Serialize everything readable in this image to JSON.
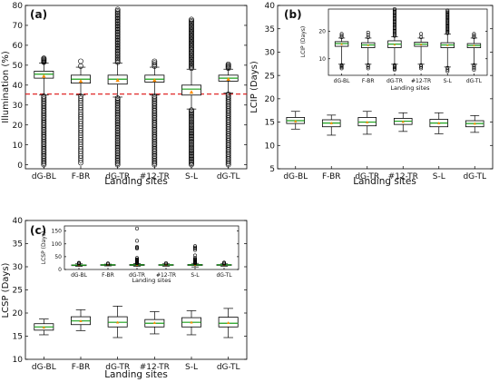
{
  "chart_data": [
    {
      "panel": "(a)",
      "type": "box",
      "ylabel": "Illumination (%)",
      "xlabel": "Landing sites",
      "categories": [
        "dG-BL",
        "F-BR",
        "dG-TR",
        "#12-TR",
        "S-L",
        "dG-TL"
      ],
      "ylim": [
        -2,
        80
      ],
      "yticks": [
        0,
        10,
        20,
        30,
        40,
        50,
        60,
        70,
        80
      ],
      "threshold": 35.5,
      "boxes": [
        {
          "whislo": 35,
          "q1": 43.5,
          "med": 45.5,
          "q3": 47,
          "whishi": 51,
          "mean": 44.5,
          "outlier_groups": [
            [
              0,
              34.5,
              48
            ],
            [
              51.5,
              53.5,
              6
            ]
          ]
        },
        {
          "whislo": 35,
          "q1": 41,
          "med": 43,
          "q3": 45,
          "whishi": 49,
          "mean": 42,
          "outlier_groups": [
            [
              1,
              34.5,
              30
            ],
            [
              49.5,
              52,
              2
            ]
          ]
        },
        {
          "whislo": 34,
          "q1": 40.5,
          "med": 43,
          "q3": 45,
          "whishi": 51,
          "mean": 42.5,
          "outlier_groups": [
            [
              0,
              33.5,
              48
            ],
            [
              51.5,
              78,
              40
            ]
          ]
        },
        {
          "whislo": 35,
          "q1": 41.5,
          "med": 43,
          "q3": 45,
          "whishi": 49,
          "mean": 42.5,
          "outlier_groups": [
            [
              0,
              34.5,
              48
            ],
            [
              49.5,
              52,
              4
            ]
          ]
        },
        {
          "whislo": 28,
          "q1": 35,
          "med": 38,
          "q3": 40,
          "whishi": 48,
          "mean": 36.5,
          "outlier_groups": [
            [
              0,
              27.5,
              42
            ],
            [
              48.5,
              73,
              40
            ]
          ]
        },
        {
          "whislo": 36,
          "q1": 42,
          "med": 43.5,
          "q3": 45,
          "whishi": 48,
          "mean": 43,
          "outlier_groups": [
            [
              0,
              35.5,
              48
            ],
            [
              48.5,
              50.5,
              5
            ]
          ]
        }
      ]
    },
    {
      "panel": "(b)",
      "type": "box",
      "ylabel": "LCIP (Days)",
      "xlabel": "Landing sites",
      "categories": [
        "dG-BL",
        "F-BR",
        "dG-TR",
        "#12-TR",
        "S-L",
        "dG-TL"
      ],
      "ylim": [
        5,
        40
      ],
      "yticks": [
        5,
        10,
        15,
        20,
        25,
        30,
        35,
        40
      ],
      "boxes": [
        {
          "whislo": 13.5,
          "q1": 14.7,
          "med": 15.3,
          "q3": 16,
          "whishi": 17.3,
          "mean": 15.2
        },
        {
          "whislo": 12.2,
          "q1": 14,
          "med": 14.8,
          "q3": 15.5,
          "whishi": 16.5,
          "mean": 14.8
        },
        {
          "whislo": 12.4,
          "q1": 14.2,
          "med": 15,
          "q3": 16,
          "whishi": 17.3,
          "mean": 15
        },
        {
          "whislo": 13,
          "q1": 14.5,
          "med": 15.2,
          "q3": 15.8,
          "whishi": 17,
          "mean": 15.1
        },
        {
          "whislo": 12.5,
          "q1": 14,
          "med": 14.8,
          "q3": 15.6,
          "whishi": 17,
          "mean": 14.8
        },
        {
          "whislo": 12.8,
          "q1": 14,
          "med": 14.7,
          "q3": 15.3,
          "whishi": 16.4,
          "mean": 14.7
        }
      ],
      "inset": {
        "ylabel": "LCIP (Days)",
        "xlabel": "Landing sites",
        "ylim": [
          4,
          28
        ],
        "yticks": [
          10,
          20
        ],
        "boxes": [
          {
            "whislo": 8,
            "q1": 14.5,
            "med": 15.5,
            "q3": 16.2,
            "whishi": 17.5,
            "mean": 15.3,
            "outlier_groups": [
              [
                6.5,
                7.7,
                4
              ],
              [
                17.8,
                19,
                3
              ]
            ]
          },
          {
            "whislo": 8,
            "q1": 14,
            "med": 15,
            "q3": 15.8,
            "whishi": 17.5,
            "mean": 14.9,
            "outlier_groups": [
              [
                6.5,
                7.7,
                3
              ],
              [
                17.8,
                19.5,
                3
              ]
            ]
          },
          {
            "whislo": 8,
            "q1": 14,
            "med": 15.3,
            "q3": 16.5,
            "whishi": 18,
            "mean": 15.1,
            "outlier_groups": [
              [
                6,
                7.7,
                5
              ],
              [
                18.3,
                28,
                22
              ]
            ]
          },
          {
            "whislo": 8,
            "q1": 14.5,
            "med": 15.3,
            "q3": 16,
            "whishi": 17.5,
            "mean": 15.2,
            "outlier_groups": [
              [
                6.5,
                7.7,
                3
              ],
              [
                17.8,
                19,
                2
              ]
            ]
          },
          {
            "whislo": 7,
            "q1": 14,
            "med": 15,
            "q3": 15.8,
            "whishi": 19,
            "mean": 14.9,
            "outlier_groups": [
              [
                5.5,
                6.7,
                3
              ],
              [
                19.3,
                27.5,
                22
              ]
            ]
          },
          {
            "whislo": 8,
            "q1": 14,
            "med": 14.8,
            "q3": 15.5,
            "whishi": 17.5,
            "mean": 14.8,
            "outlier_groups": [
              [
                6,
                7.7,
                4
              ],
              [
                17.8,
                19,
                3
              ]
            ]
          }
        ]
      }
    },
    {
      "panel": "(c)",
      "type": "box",
      "ylabel": "LCSP (Days)",
      "xlabel": "Landing sites",
      "categories": [
        "dG-BL",
        "F-BR",
        "dG-TR",
        "#12-TR",
        "S-L",
        "dG-TL"
      ],
      "ylim": [
        10,
        40
      ],
      "yticks": [
        10,
        15,
        20,
        25,
        30,
        35,
        40
      ],
      "boxes": [
        {
          "whislo": 15.3,
          "q1": 16.3,
          "med": 17,
          "q3": 17.7,
          "whishi": 18.7,
          "mean": 16.9
        },
        {
          "whislo": 16.2,
          "q1": 17.5,
          "med": 18.3,
          "q3": 19.2,
          "whishi": 20.7,
          "mean": 18.3
        },
        {
          "whislo": 14.7,
          "q1": 17,
          "med": 18,
          "q3": 19.2,
          "whishi": 21.5,
          "mean": 18
        },
        {
          "whislo": 15.5,
          "q1": 17,
          "med": 17.8,
          "q3": 18.6,
          "whishi": 20.3,
          "mean": 17.9
        },
        {
          "whislo": 15.3,
          "q1": 17,
          "med": 18,
          "q3": 19,
          "whishi": 20.5,
          "mean": 18
        },
        {
          "whislo": 14.7,
          "q1": 17,
          "med": 17.8,
          "q3": 19.1,
          "whishi": 21,
          "mean": 17.9
        }
      ],
      "inset": {
        "ylabel": "LCSP (Days)",
        "xlabel": "Landing sites",
        "ylim": [
          0,
          170
        ],
        "yticks": [
          0,
          50,
          100,
          150
        ],
        "boxes": [
          {
            "whislo": 12,
            "q1": 16,
            "med": 17,
            "q3": 18,
            "whishi": 22,
            "mean": 17,
            "outlier_groups": [
              [
                22,
                26,
                3
              ]
            ]
          },
          {
            "whislo": 14,
            "q1": 17,
            "med": 18,
            "q3": 19,
            "whishi": 21,
            "mean": 18,
            "outlier_groups": [
              [
                21,
                24,
                2
              ]
            ]
          },
          {
            "whislo": 12,
            "q1": 16,
            "med": 18,
            "q3": 19.5,
            "whishi": 23,
            "mean": 18,
            "outlier_groups": [
              [
                24,
                40,
                8
              ]
            ],
            "outliers": [
              45,
              82,
              85,
              88,
              112,
              160
            ]
          },
          {
            "whislo": 13,
            "q1": 17,
            "med": 18,
            "q3": 19,
            "whishi": 22,
            "mean": 18,
            "outlier_groups": [
              [
                22,
                25,
                2
              ]
            ]
          },
          {
            "whislo": 10,
            "q1": 16,
            "med": 18,
            "q3": 19.5,
            "whishi": 24,
            "mean": 18,
            "outlier_groups": [
              [
                24,
                40,
                10
              ]
            ],
            "outliers": [
              45,
              55,
              76,
              82,
              86,
              91
            ]
          },
          {
            "whislo": 13,
            "q1": 17,
            "med": 18,
            "q3": 19,
            "whishi": 22,
            "mean": 18,
            "outlier_groups": [
              [
                22,
                27,
                3
              ]
            ]
          }
        ]
      }
    }
  ]
}
